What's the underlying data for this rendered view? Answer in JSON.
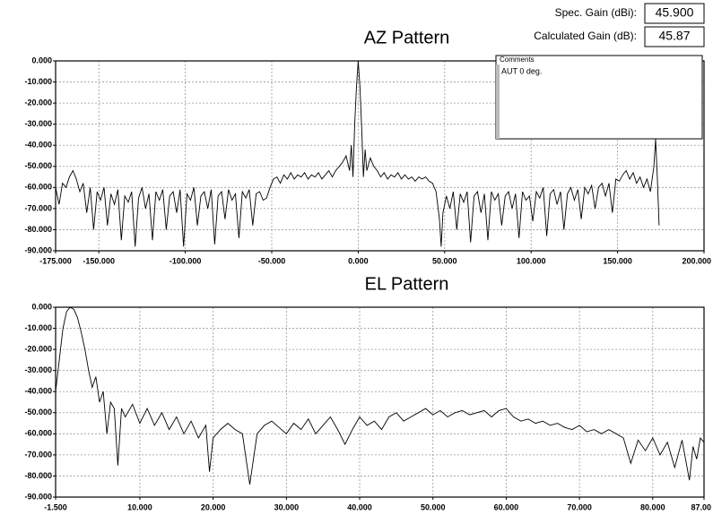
{
  "header": {
    "spec_gain_label": "Spec. Gain (dBi):",
    "spec_gain_value": "45.900",
    "calc_gain_label": "Calculated Gain (dB):",
    "calc_gain_value": "45.87"
  },
  "comments": {
    "title": "Comments",
    "text": "AUT 0 deg."
  },
  "chart_data": [
    {
      "type": "line",
      "title": "AZ Pattern",
      "color": "#000000",
      "grid": true,
      "xlim": [
        -175,
        200
      ],
      "ylim": [
        -90,
        0
      ],
      "xticks": [
        {
          "value": -175,
          "label": "-175.000"
        },
        {
          "value": -150,
          "label": "-150.000"
        },
        {
          "value": -100,
          "label": "-100.000"
        },
        {
          "value": -50,
          "label": "-50.000"
        },
        {
          "value": 0,
          "label": "0.000"
        },
        {
          "value": 50,
          "label": "50.000"
        },
        {
          "value": 100,
          "label": "100.000"
        },
        {
          "value": 150,
          "label": "150.000"
        },
        {
          "value": 200,
          "label": "200.000"
        }
      ],
      "yticks": [
        {
          "value": 0,
          "label": "0.000"
        },
        {
          "value": -10,
          "label": "-10.000"
        },
        {
          "value": -20,
          "label": "-20.000"
        },
        {
          "value": -30,
          "label": "-30.000"
        },
        {
          "value": -40,
          "label": "-40.000"
        },
        {
          "value": -50,
          "label": "-50.000"
        },
        {
          "value": -60,
          "label": "-60.000"
        },
        {
          "value": -70,
          "label": "-70.000"
        },
        {
          "value": -80,
          "label": "-80.000"
        },
        {
          "value": -90,
          "label": "-90.000"
        }
      ],
      "x": [
        -175,
        -173,
        -171,
        -169,
        -167,
        -165,
        -163,
        -161,
        -159,
        -157,
        -155,
        -153,
        -151,
        -149,
        -147,
        -145,
        -143,
        -141,
        -139,
        -137,
        -135,
        -133,
        -131,
        -129,
        -127,
        -125,
        -123,
        -121,
        -119,
        -117,
        -115,
        -113,
        -111,
        -109,
        -107,
        -105,
        -103,
        -101,
        -99,
        -97,
        -95,
        -93,
        -91,
        -89,
        -87,
        -85,
        -83,
        -81,
        -79,
        -77,
        -75,
        -73,
        -71,
        -69,
        -67,
        -65,
        -63,
        -61,
        -59,
        -57,
        -55,
        -53,
        -51,
        -49,
        -47,
        -45,
        -43,
        -41,
        -39,
        -37,
        -35,
        -33,
        -31,
        -29,
        -27,
        -25,
        -23,
        -21,
        -19,
        -17,
        -15,
        -13,
        -11,
        -9,
        -7,
        -5,
        -4,
        -3,
        -2,
        -1,
        0,
        1,
        2,
        3,
        4,
        5,
        7,
        9,
        11,
        13,
        15,
        17,
        19,
        21,
        23,
        25,
        27,
        29,
        31,
        33,
        35,
        37,
        39,
        41,
        43,
        45,
        47,
        48,
        49,
        51,
        53,
        55,
        57,
        59,
        61,
        63,
        65,
        67,
        69,
        71,
        73,
        75,
        77,
        79,
        81,
        83,
        85,
        87,
        89,
        91,
        93,
        95,
        97,
        99,
        101,
        103,
        105,
        107,
        109,
        111,
        113,
        115,
        117,
        119,
        121,
        123,
        125,
        127,
        129,
        131,
        133,
        135,
        137,
        139,
        141,
        143,
        145,
        147,
        149,
        151,
        153,
        155,
        157,
        159,
        161,
        163,
        165,
        167,
        169,
        171,
        172,
        173,
        174
      ],
      "values": [
        -60,
        -68,
        -58,
        -60,
        -55,
        -52,
        -56,
        -62,
        -58,
        -72,
        -60,
        -80,
        -62,
        -66,
        -60,
        -78,
        -63,
        -68,
        -61,
        -85,
        -64,
        -67,
        -62,
        -88,
        -65,
        -60,
        -70,
        -63,
        -85,
        -62,
        -66,
        -61,
        -80,
        -64,
        -62,
        -72,
        -61,
        -88,
        -63,
        -66,
        -60,
        -78,
        -64,
        -62,
        -70,
        -61,
        -87,
        -64,
        -62,
        -75,
        -61,
        -66,
        -63,
        -84,
        -62,
        -65,
        -61,
        -78,
        -63,
        -62,
        -66,
        -65,
        -60,
        -56,
        -55,
        -58,
        -54,
        -56,
        -53,
        -56,
        -54,
        -55,
        -53,
        -56,
        -54,
        -55,
        -53,
        -56,
        -54,
        -52,
        -55,
        -52,
        -50,
        -48,
        -45,
        -52,
        -40,
        -55,
        -30,
        -12,
        0,
        -12,
        -32,
        -55,
        -42,
        -52,
        -46,
        -50,
        -52,
        -55,
        -53,
        -56,
        -54,
        -55,
        -53,
        -56,
        -54,
        -56,
        -55,
        -57,
        -55,
        -56,
        -55,
        -57,
        -58,
        -62,
        -75,
        -88,
        -72,
        -64,
        -70,
        -62,
        -80,
        -63,
        -67,
        -62,
        -86,
        -64,
        -62,
        -72,
        -63,
        -85,
        -62,
        -66,
        -63,
        -78,
        -64,
        -62,
        -70,
        -63,
        -84,
        -62,
        -66,
        -64,
        -76,
        -62,
        -65,
        -60,
        -83,
        -63,
        -61,
        -68,
        -62,
        -80,
        -63,
        -60,
        -66,
        -61,
        -75,
        -60,
        -63,
        -59,
        -70,
        -60,
        -58,
        -64,
        -58,
        -72,
        -56,
        -57,
        -54,
        -52,
        -56,
        -53,
        -58,
        -55,
        -60,
        -56,
        -62,
        -50,
        -37,
        -55,
        -78
      ]
    },
    {
      "type": "line",
      "title": "EL Pattern",
      "color": "#000000",
      "grid": true,
      "xlim": [
        -1.5,
        87
      ],
      "ylim": [
        -90,
        0
      ],
      "xticks": [
        {
          "value": -1.5,
          "label": "-1.500"
        },
        {
          "value": 10,
          "label": "10.000"
        },
        {
          "value": 20,
          "label": "20.000"
        },
        {
          "value": 30,
          "label": "30.000"
        },
        {
          "value": 40,
          "label": "40.000"
        },
        {
          "value": 50,
          "label": "50.000"
        },
        {
          "value": 60,
          "label": "60.000"
        },
        {
          "value": 70,
          "label": "70.000"
        },
        {
          "value": 80,
          "label": "80.000"
        },
        {
          "value": 87,
          "label": "87.00"
        }
      ],
      "yticks": [
        {
          "value": 0,
          "label": "0.000"
        },
        {
          "value": -10,
          "label": "-10.000"
        },
        {
          "value": -20,
          "label": "-20.000"
        },
        {
          "value": -30,
          "label": "-30.000"
        },
        {
          "value": -40,
          "label": "-40.000"
        },
        {
          "value": -50,
          "label": "-50.000"
        },
        {
          "value": -60,
          "label": "-60.000"
        },
        {
          "value": -70,
          "label": "-70.000"
        },
        {
          "value": -80,
          "label": "-80.000"
        },
        {
          "value": -90,
          "label": "-90.000"
        }
      ],
      "x": [
        -1.5,
        -1,
        -0.5,
        0,
        0.5,
        1,
        1.5,
        2,
        2.5,
        3,
        3.5,
        4,
        4.5,
        5,
        5.5,
        6,
        6.5,
        7,
        7.5,
        8,
        9,
        10,
        11,
        12,
        13,
        14,
        15,
        16,
        17,
        18,
        19,
        19.5,
        20,
        21,
        22,
        23,
        24,
        25,
        26,
        27,
        28,
        29,
        30,
        31,
        32,
        33,
        34,
        35,
        36,
        37,
        38,
        39,
        40,
        41,
        42,
        43,
        44,
        45,
        46,
        47,
        48,
        49,
        50,
        51,
        52,
        53,
        54,
        55,
        56,
        57,
        58,
        59,
        60,
        61,
        62,
        63,
        64,
        65,
        66,
        67,
        68,
        69,
        70,
        71,
        72,
        73,
        74,
        75,
        76,
        77,
        78,
        79,
        80,
        81,
        82,
        83,
        84,
        85,
        85.5,
        86,
        86.5,
        87
      ],
      "values": [
        -40,
        -25,
        -10,
        -2,
        0,
        -1,
        -5,
        -12,
        -20,
        -30,
        -38,
        -33,
        -45,
        -40,
        -60,
        -45,
        -48,
        -75,
        -48,
        -52,
        -46,
        -55,
        -48,
        -56,
        -50,
        -58,
        -52,
        -60,
        -54,
        -62,
        -56,
        -78,
        -62,
        -58,
        -55,
        -58,
        -60,
        -84,
        -60,
        -56,
        -54,
        -57,
        -60,
        -55,
        -58,
        -53,
        -60,
        -56,
        -52,
        -58,
        -65,
        -58,
        -52,
        -56,
        -54,
        -58,
        -52,
        -50,
        -54,
        -52,
        -50,
        -48,
        -51,
        -49,
        -52,
        -50,
        -49,
        -51,
        -50,
        -49,
        -52,
        -49,
        -48,
        -52,
        -54,
        -53,
        -55,
        -54,
        -56,
        -55,
        -57,
        -58,
        -56,
        -59,
        -58,
        -60,
        -58,
        -60,
        -62,
        -74,
        -63,
        -68,
        -62,
        -70,
        -64,
        -76,
        -63,
        -82,
        -66,
        -72,
        -62,
        -64
      ]
    }
  ]
}
